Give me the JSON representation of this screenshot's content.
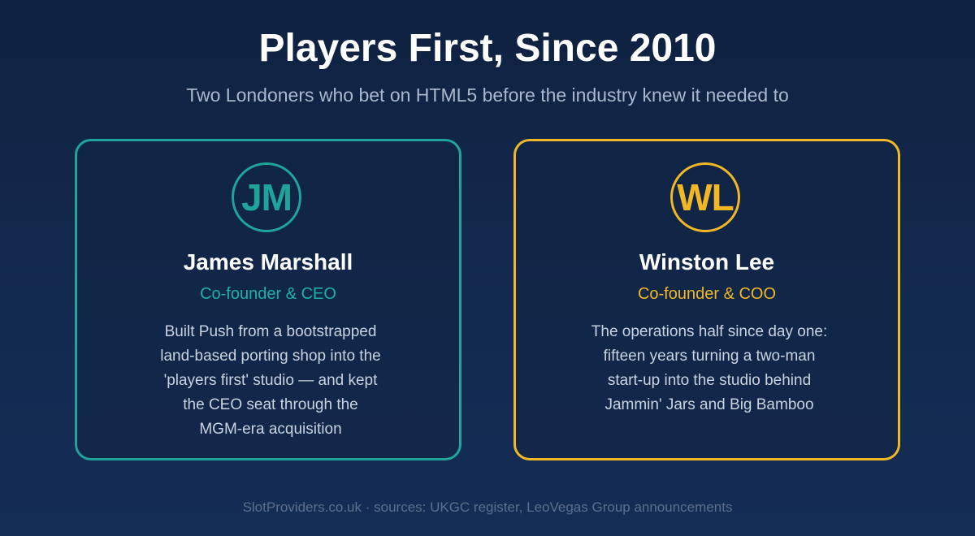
{
  "header": {
    "title": "Players First, Since 2010",
    "subtitle": "Two Londoners who bet on HTML5 before the industry knew it needed to"
  },
  "founders": [
    {
      "initials": "JM",
      "name": "James Marshall",
      "role": "Co-founder & CEO",
      "accent_color": "#1fa39a",
      "bio_lines": [
        "Built Push from a bootstrapped",
        "land-based porting shop into the",
        "'players first' studio — and kept",
        "the CEO seat through the",
        "MGM-era acquisition"
      ]
    },
    {
      "initials": "WL",
      "name": "Winston Lee",
      "role": "Co-founder & COO",
      "accent_color": "#f1b724",
      "bio_lines": [
        "The operations half since day one:",
        "fifteen years turning a two-man",
        "start-up into the studio behind",
        "Jammin' Jars and Big Bamboo"
      ]
    }
  ],
  "footer": {
    "text": "SlotProviders.co.uk · sources: UKGC register, LeoVegas Group announcements"
  }
}
